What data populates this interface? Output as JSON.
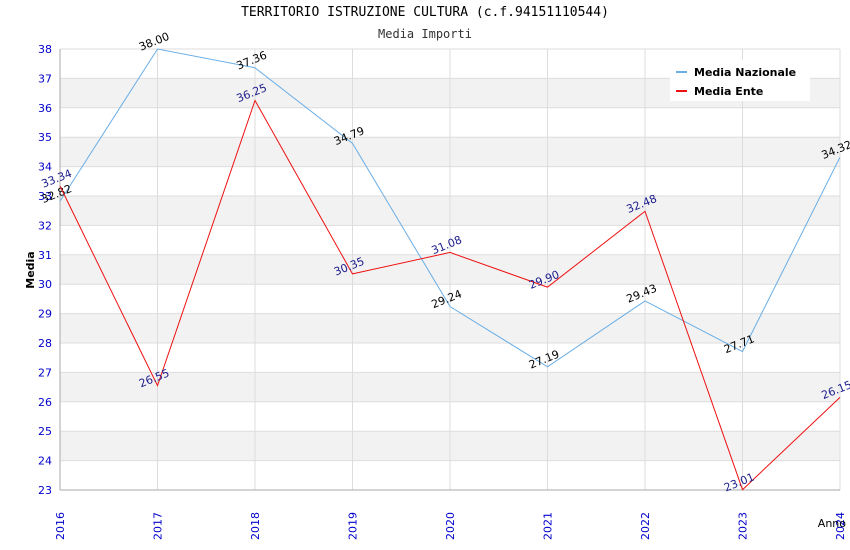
{
  "chart_data": {
    "type": "line",
    "title": "TERRITORIO ISTRUZIONE CULTURA (c.f.94151110544)",
    "subtitle": "Media Importi",
    "xlabel": "Anno",
    "ylabel": "Media",
    "categories": [
      "2016",
      "2017",
      "2018",
      "2019",
      "2020",
      "2021",
      "2022",
      "2023",
      "2024"
    ],
    "ylim": [
      23,
      38
    ],
    "yticks": [
      "23",
      "24",
      "25",
      "26",
      "27",
      "28",
      "29",
      "30",
      "31",
      "32",
      "33",
      "34",
      "35",
      "36",
      "37",
      "38"
    ],
    "grid": true,
    "legend": "top-right",
    "series": [
      {
        "name": "Media Nazionale",
        "color": "#6aaee6",
        "label_color": "#000000",
        "values": [
          32.82,
          38.0,
          37.36,
          34.79,
          29.24,
          27.19,
          29.43,
          27.71,
          34.32
        ],
        "labels": [
          "32.82",
          "38.00",
          "37.36",
          "34.79",
          "29.24",
          "27.19",
          "29.43",
          "27.71",
          "34.32"
        ]
      },
      {
        "name": "Media Ente",
        "color": "#ee1111",
        "label_color": "#1a1a8c",
        "values": [
          33.34,
          26.55,
          36.25,
          30.35,
          31.08,
          29.9,
          32.48,
          23.01,
          26.15
        ],
        "labels": [
          "33.34",
          "26.55",
          "36.25",
          "30.35",
          "31.08",
          "29.90",
          "32.48",
          "23.01",
          "26.15"
        ]
      }
    ],
    "colors": {
      "axis_tick_text": "#0000cc",
      "band": "#f2f2f2",
      "grid": "#dddddd"
    }
  }
}
